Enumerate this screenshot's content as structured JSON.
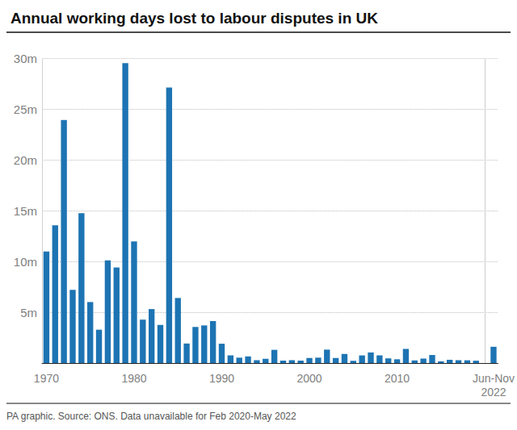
{
  "chart_data": {
    "type": "bar",
    "title": "Annual working days lost to labour disputes in UK",
    "footnote": "PA graphic. Source: ONS. Data unavailable for Feb 2020-May 2022",
    "categories": [
      "1970",
      null,
      null,
      null,
      null,
      null,
      null,
      null,
      null,
      null,
      "1980",
      null,
      null,
      null,
      null,
      null,
      null,
      null,
      null,
      null,
      "1990",
      null,
      null,
      null,
      null,
      null,
      null,
      null,
      null,
      null,
      "2000",
      null,
      null,
      null,
      null,
      null,
      null,
      null,
      null,
      null,
      "2010",
      null,
      null,
      null,
      null,
      null,
      null,
      null,
      null,
      null,
      null,
      "Jun-Nov\n2022"
    ],
    "values": [
      10.98,
      13.55,
      23.9,
      7.2,
      14.75,
      6.0,
      3.28,
      10.1,
      9.4,
      29.5,
      11.96,
      4.27,
      5.31,
      3.75,
      27.1,
      6.4,
      1.92,
      3.55,
      3.7,
      4.13,
      1.9,
      0.76,
      0.53,
      0.65,
      0.28,
      0.42,
      1.3,
      0.24,
      0.28,
      0.24,
      0.5,
      0.53,
      1.32,
      0.5,
      0.9,
      0.22,
      0.75,
      1.04,
      0.76,
      0.46,
      0.37,
      1.39,
      0.25,
      0.44,
      0.79,
      0.17,
      0.32,
      0.28,
      0.27,
      0.23,
      null,
      1.6
    ],
    "color": "#1d74b3",
    "ylim": [
      0,
      30
    ],
    "yticks": [
      {
        "value": 5,
        "label": "5m"
      },
      {
        "value": 10,
        "label": "10m"
      },
      {
        "value": 15,
        "label": "15m"
      },
      {
        "value": 20,
        "label": "20m"
      },
      {
        "value": 25,
        "label": "25m"
      },
      {
        "value": 30,
        "label": "30m"
      }
    ],
    "grid": true
  }
}
